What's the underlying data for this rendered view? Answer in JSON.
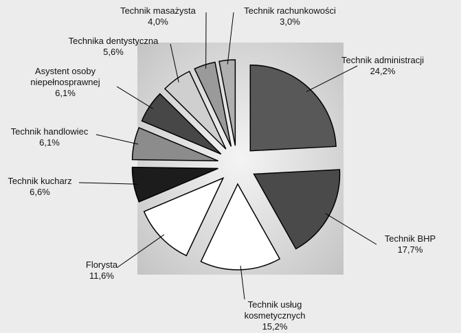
{
  "chart_data": {
    "type": "pie",
    "categories": [
      "Technik administracji",
      "Technik BHP",
      "Technik usług kosmetycznych",
      "Florysta",
      "Technik kucharz",
      "Technik handlowiec",
      "Asystent osoby niepełnosprawnej",
      "Technika dentystyczna",
      "Technik masażysta",
      "Technik rachunkowości"
    ],
    "values": [
      24.2,
      17.7,
      15.2,
      11.6,
      6.6,
      6.1,
      6.1,
      5.6,
      4.0,
      3.0
    ],
    "value_labels": [
      "24,2%",
      "17,7%",
      "15,2%",
      "11,6%",
      "6,6%",
      "6,1%",
      "6,1%",
      "5,6%",
      "4,0%",
      "3,0%"
    ],
    "colors": [
      "#585858",
      "#4a4a4a",
      "#ffffff",
      "#ffffff",
      "#1c1c1c",
      "#8c8c8c",
      "#474747",
      "#cfcfcf",
      "#9a9a9a",
      "#b0b0b0"
    ]
  }
}
